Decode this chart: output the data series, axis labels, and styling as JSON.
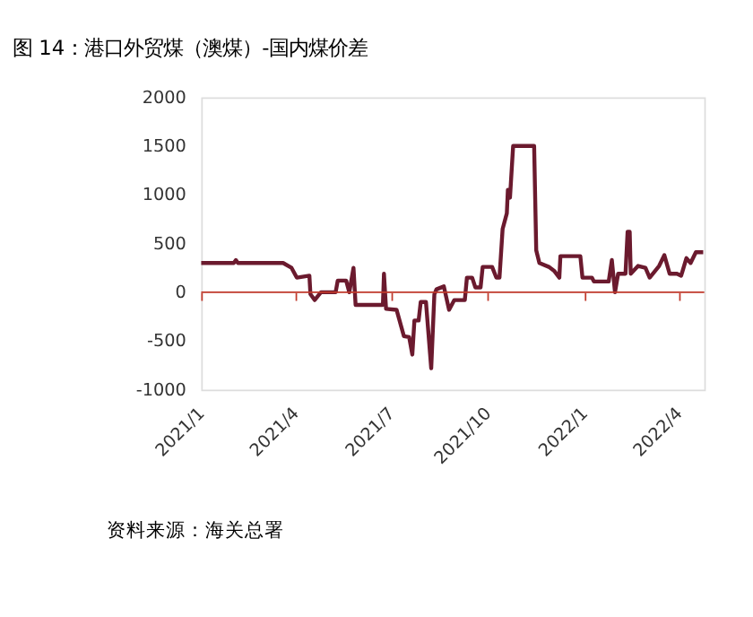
{
  "chart_data": {
    "type": "line",
    "title": "图 14：港口外贸煤（澳煤）-国内煤价差",
    "annotations": [
      "资料来源：海关总署"
    ],
    "x": [
      "2021-01-01",
      "2021-02-01",
      "2021-02-03",
      "2021-02-05",
      "2021-03-20",
      "2021-03-28",
      "2021-04-02",
      "2021-04-14",
      "2021-04-15",
      "2021-04-19",
      "2021-04-25",
      "2021-05-09",
      "2021-05-11",
      "2021-05-19",
      "2021-05-22",
      "2021-05-26",
      "2021-05-28",
      "2021-06-23",
      "2021-06-24",
      "2021-06-26",
      "2021-07-06",
      "2021-07-13",
      "2021-07-18",
      "2021-07-21",
      "2021-07-23",
      "2021-07-27",
      "2021-07-29",
      "2021-08-03",
      "2021-08-08",
      "2021-08-11",
      "2021-08-13",
      "2021-08-20",
      "2021-08-25",
      "2021-08-30",
      "2021-09-09",
      "2021-09-11",
      "2021-09-16",
      "2021-09-19",
      "2021-09-24",
      "2021-09-26",
      "2021-10-05",
      "2021-10-09",
      "2021-10-12",
      "2021-10-15",
      "2021-10-19",
      "2021-10-20",
      "2021-10-22",
      "2021-10-25",
      "2021-11-14",
      "2021-11-16",
      "2021-11-19",
      "2021-11-28",
      "2021-12-03",
      "2021-12-08",
      "2021-12-09",
      "2021-12-28",
      "2021-12-30",
      "2022-01-08",
      "2022-01-10",
      "2022-01-24",
      "2022-01-27",
      "2022-01-30",
      "2022-02-02",
      "2022-02-09",
      "2022-02-11",
      "2022-02-13",
      "2022-02-14",
      "2022-02-21",
      "2022-02-28",
      "2022-03-04",
      "2022-03-13",
      "2022-03-18",
      "2022-03-23",
      "2022-03-30",
      "2022-04-03",
      "2022-04-08",
      "2022-04-12",
      "2022-04-17",
      "2022-04-24"
    ],
    "series": [
      {
        "color": "#6b1a2e",
        "values": [
          300,
          300,
          330,
          300,
          300,
          250,
          150,
          170,
          -20,
          -80,
          0,
          0,
          120,
          120,
          0,
          250,
          -130,
          -130,
          190,
          -170,
          -180,
          -450,
          -460,
          -640,
          -290,
          -290,
          -100,
          -100,
          -780,
          -20,
          30,
          60,
          -180,
          -80,
          -80,
          150,
          150,
          50,
          50,
          260,
          260,
          150,
          150,
          650,
          810,
          1050,
          970,
          1500,
          1500,
          430,
          300,
          260,
          220,
          150,
          370,
          370,
          150,
          150,
          110,
          110,
          330,
          0,
          190,
          190,
          620,
          620,
          190,
          270,
          250,
          150,
          270,
          380,
          190,
          190,
          170,
          350,
          300,
          410,
          410
        ]
      }
    ],
    "xlim": [
      "2021-01-01",
      "2022-04-25"
    ],
    "xticks": [
      {
        "value": "2021-01-01",
        "label": "2021/1"
      },
      {
        "value": "2021-04-01",
        "label": "2021/4"
      },
      {
        "value": "2021-07-01",
        "label": "2021/7"
      },
      {
        "value": "2021-10-01",
        "label": "2021/10"
      },
      {
        "value": "2022-01-01",
        "label": "2022/1"
      },
      {
        "value": "2022-04-01",
        "label": "2022/4"
      }
    ],
    "ylim": [
      -1000,
      2000
    ],
    "yticks": [
      -1000,
      -500,
      0,
      500,
      1000,
      1500,
      2000
    ],
    "ref_lines": [
      {
        "axis": "y",
        "value": 0,
        "color": "#c0392b"
      }
    ],
    "grid": false,
    "legend": false,
    "line_style": "solid",
    "marker": "none"
  }
}
